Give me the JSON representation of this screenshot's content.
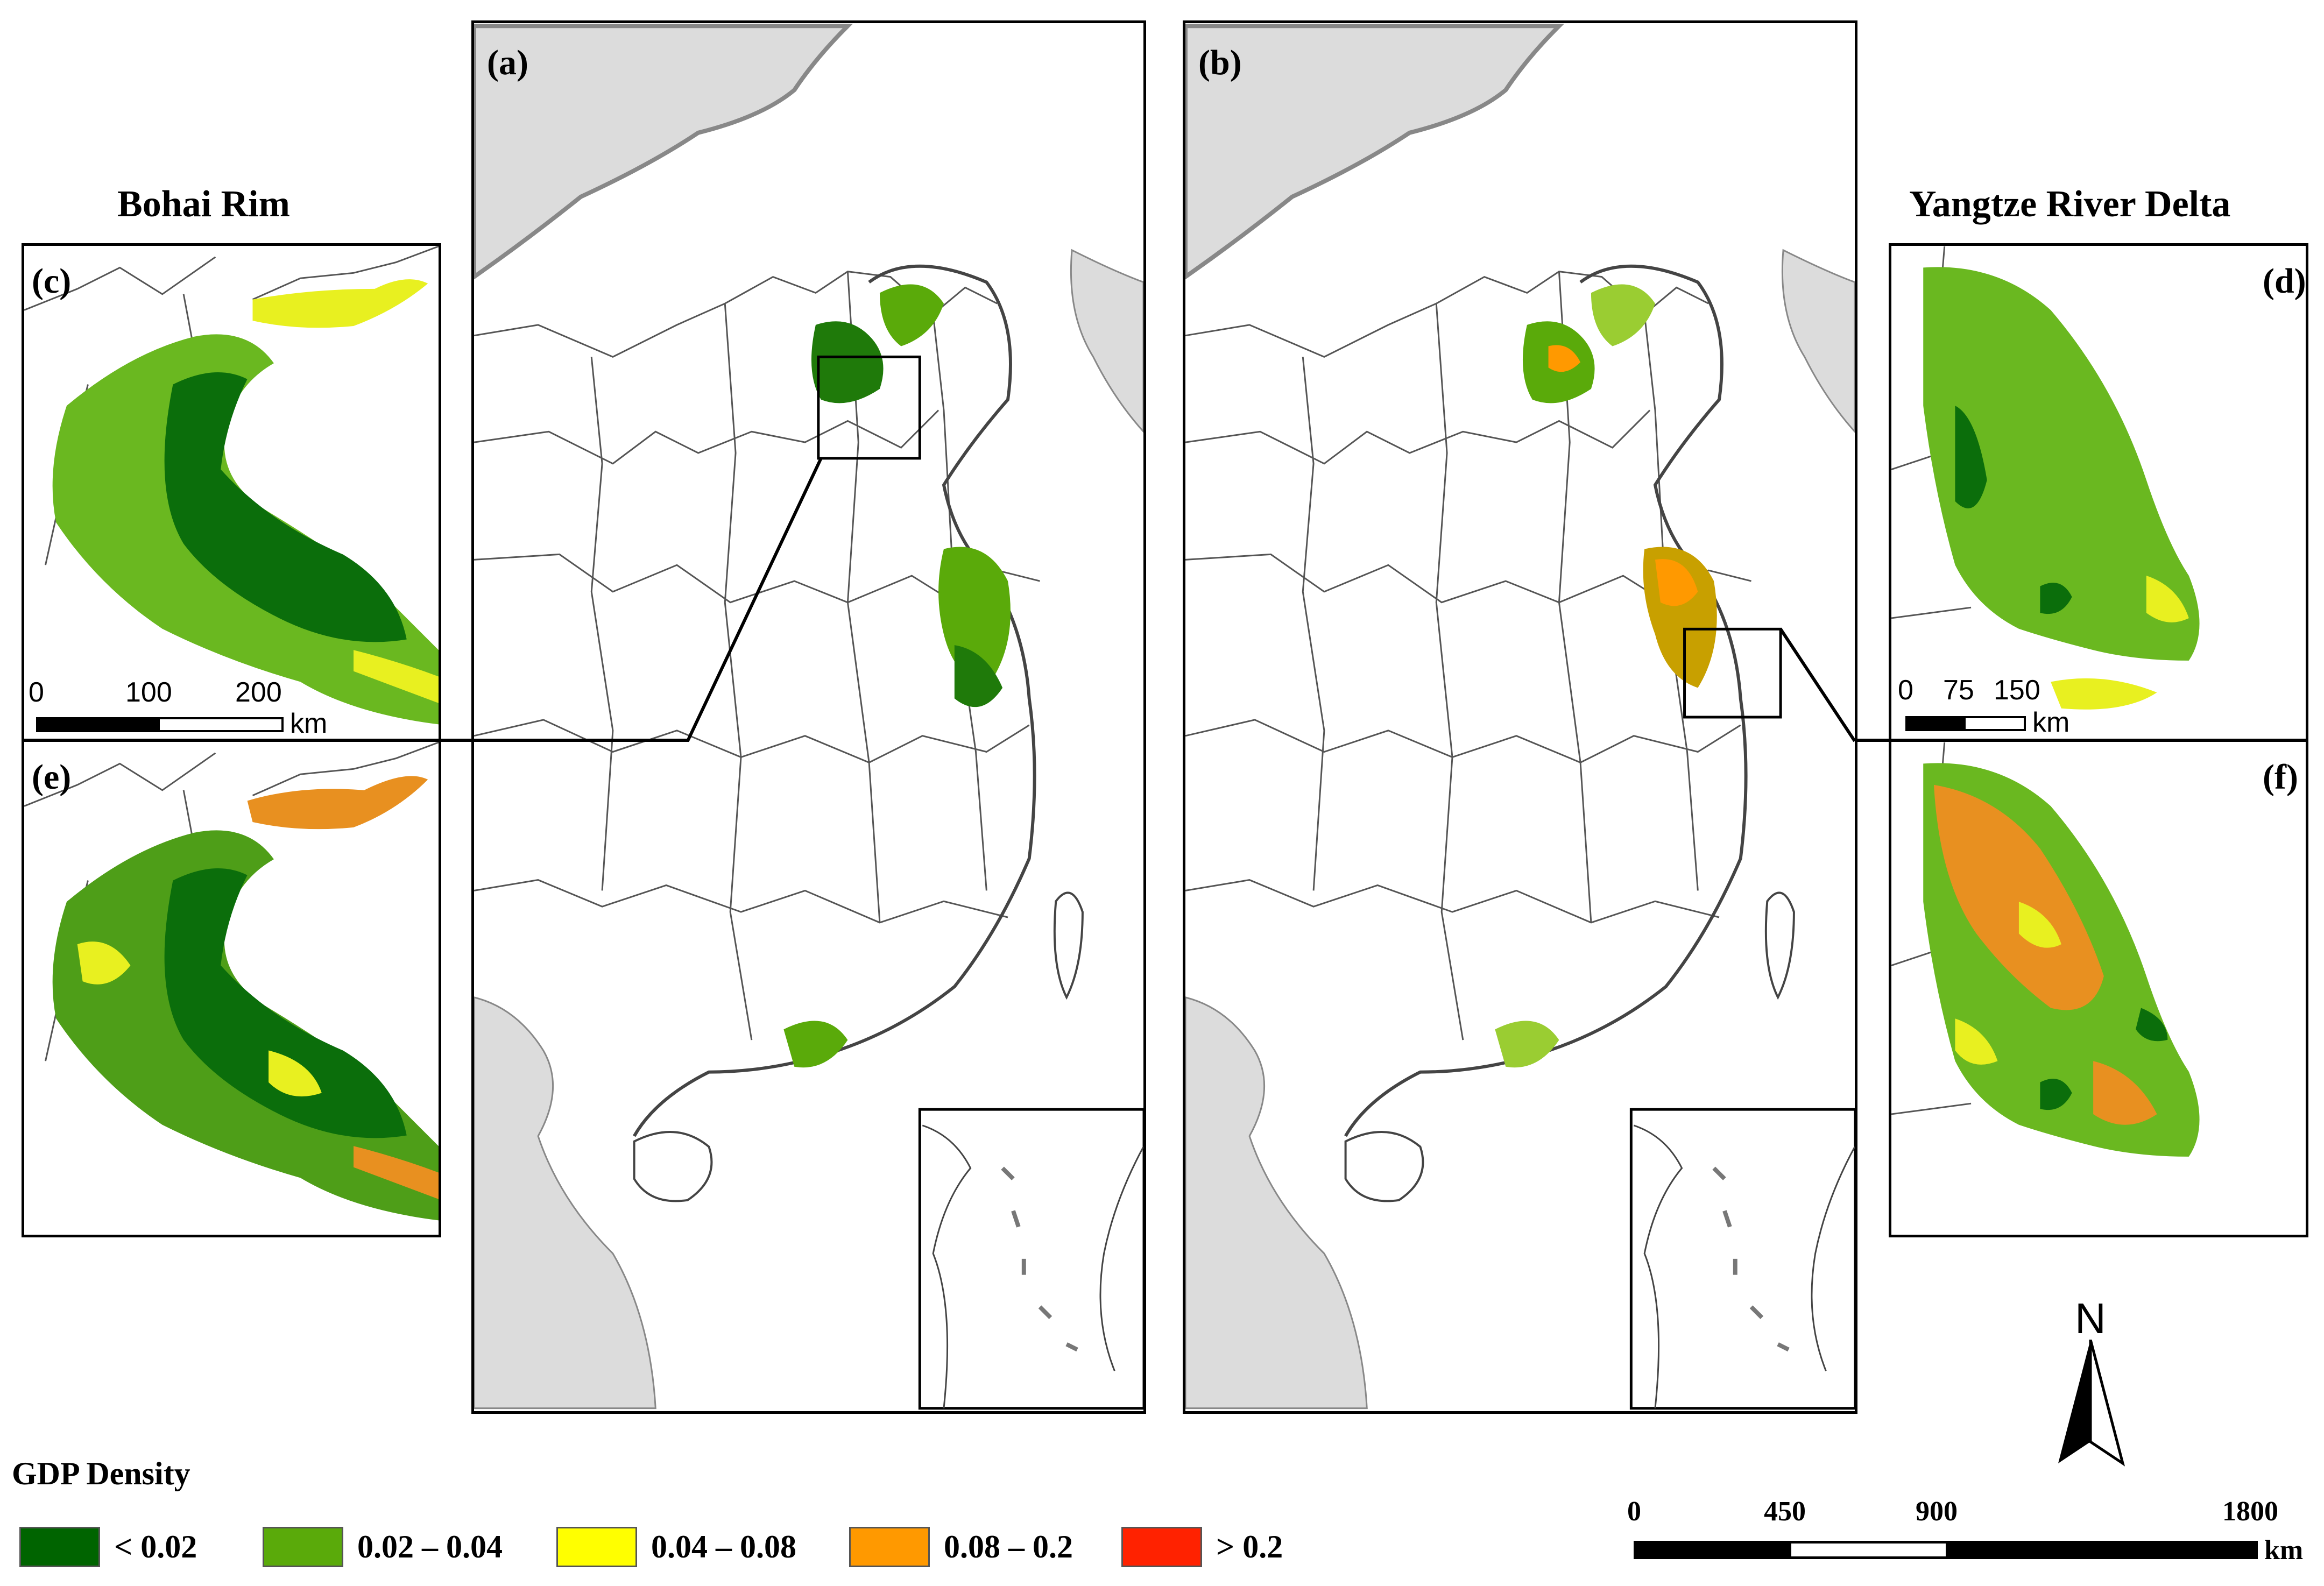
{
  "titles": {
    "left_region": "Bohai Rim",
    "right_region": "Yangtze River Delta"
  },
  "panels": {
    "a": "(a)",
    "b": "(b)",
    "c": "(c)",
    "d": "(d)",
    "e": "(e)",
    "f": "(f)"
  },
  "legend": {
    "title": "GDP Density",
    "classes": [
      {
        "label": "< 0.02",
        "color": "#006400"
      },
      {
        "label": "0.02 – 0.04",
        "color": "#5aaa0a"
      },
      {
        "label": "0.04 – 0.08",
        "color": "#ffff00"
      },
      {
        "label": "0.08 – 0.2",
        "color": "#ff9900"
      },
      {
        "label": "> 0.2",
        "color": "#ff2200"
      }
    ]
  },
  "scalebar_main": {
    "ticks": [
      "0",
      "450",
      "900",
      "1800"
    ],
    "unit": "km"
  },
  "scalebar_bohai": {
    "ticks": [
      "0",
      "100",
      "200"
    ],
    "unit": "km"
  },
  "scalebar_yangtze": {
    "ticks": [
      "0",
      "75",
      "150"
    ],
    "unit": "km"
  },
  "north_arrow": {
    "label": "N"
  },
  "colors": {
    "land_outside": "#dcdcdc",
    "border": "#555555",
    "sea": "#ffffff"
  }
}
